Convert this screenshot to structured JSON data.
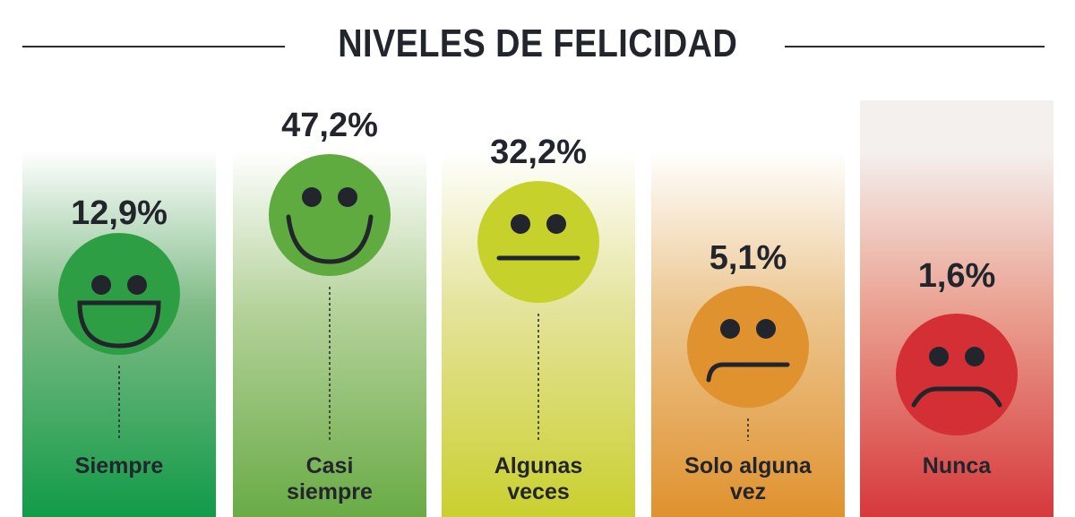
{
  "chart_data": {
    "type": "bar",
    "title": "NIVELES DE FELICIDAD",
    "categories": [
      "Siempre",
      "Casi siempre",
      "Algunas veces",
      "Solo alguna vez",
      "Nunca"
    ],
    "category_lines": [
      [
        "Siempre"
      ],
      [
        "Casi",
        "siempre"
      ],
      [
        "Algunas",
        "veces"
      ],
      [
        "Solo alguna",
        "vez"
      ],
      [
        "Nunca"
      ]
    ],
    "values": [
      12.9,
      47.2,
      32.2,
      5.1,
      1.6
    ],
    "value_labels": [
      "12,9%",
      "47,2%",
      "32,2%",
      "5,1%",
      "1,6%"
    ],
    "unit": "%",
    "icons": [
      "big-smile-face-icon",
      "smile-face-icon",
      "neutral-face-icon",
      "slightly-sad-face-icon",
      "sad-face-icon"
    ],
    "face_colors": [
      "#2e9e44",
      "#5fab40",
      "#c7d12b",
      "#df922e",
      "#d42f35"
    ],
    "column_colors": [
      "#0f9a46",
      "#68aa44",
      "#c9cf2c",
      "#e0902c",
      "#d6363a"
    ],
    "column_mid_colors": [
      "#7dba84",
      "#b4d29a",
      "#e4e39a",
      "#ecc690",
      "#eaa090"
    ],
    "text_color": "#23252d"
  }
}
